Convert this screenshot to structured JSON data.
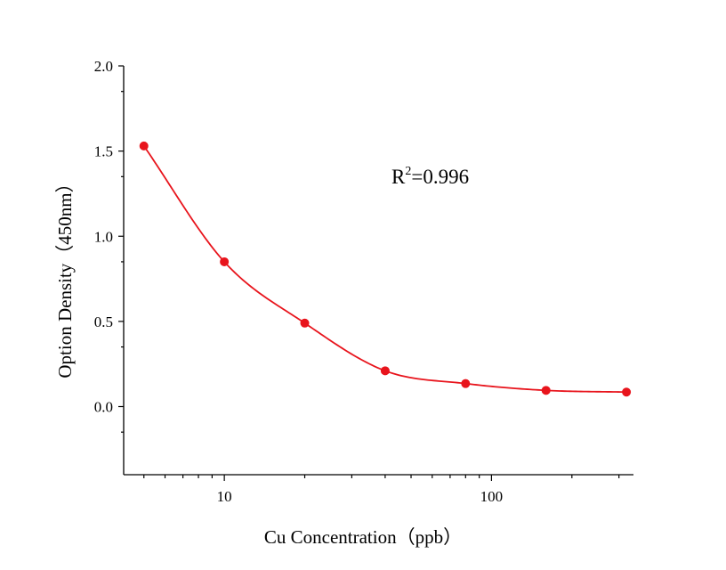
{
  "chart_data": {
    "type": "scatter",
    "xlabel": "Cu  Concentration（ppb）",
    "ylabel": "Option Density（450nm）",
    "xscale": "log",
    "xlim": [
      4.2,
      340
    ],
    "ylim": [
      -0.4,
      2.0
    ],
    "xticks": [
      10,
      100
    ],
    "xtick_labels": [
      "10",
      "100"
    ],
    "yticks": [
      0.0,
      0.5,
      1.0,
      1.5,
      2.0
    ],
    "ytick_labels": [
      "0.0",
      "0.5",
      "1.0",
      "1.5",
      "2.0"
    ],
    "grid": false,
    "legend": "none",
    "annotation": {
      "base": "R",
      "sup": "2",
      "rest": "=0.996"
    },
    "series": [
      {
        "x": [
          5,
          10,
          20,
          40,
          80,
          160,
          320
        ],
        "y": [
          1.53,
          0.85,
          0.49,
          0.21,
          0.135,
          0.095,
          0.085
        ],
        "color": "#e8141c",
        "fit": "curve"
      }
    ]
  }
}
